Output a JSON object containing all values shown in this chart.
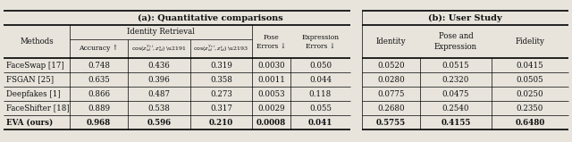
{
  "title_a": "(a): Quantitative comparisons",
  "title_b": "(b): User Study",
  "methods": [
    "FaceSwap [17]",
    "FSGAN [25]",
    "Deepfakes [1]",
    "FaceShifter [18]",
    "EVA (ours)"
  ],
  "data_a": [
    [
      0.748,
      0.436,
      0.319,
      0.003,
      0.05
    ],
    [
      0.635,
      0.396,
      0.358,
      0.0011,
      0.044
    ],
    [
      0.866,
      0.487,
      0.273,
      0.0053,
      0.118
    ],
    [
      0.889,
      0.538,
      0.317,
      0.0029,
      0.055
    ],
    [
      0.968,
      0.596,
      0.21,
      0.0008,
      0.041
    ]
  ],
  "data_b": [
    [
      0.052,
      0.0515,
      0.0415
    ],
    [
      0.028,
      0.232,
      0.0505
    ],
    [
      0.0775,
      0.0475,
      0.025
    ],
    [
      0.268,
      0.254,
      0.235
    ],
    [
      0.5755,
      0.4155,
      0.648
    ]
  ],
  "bg_color": "#e8e4dc",
  "text_color": "#111111",
  "lw_thick": 1.2,
  "lw_thin": 0.5
}
